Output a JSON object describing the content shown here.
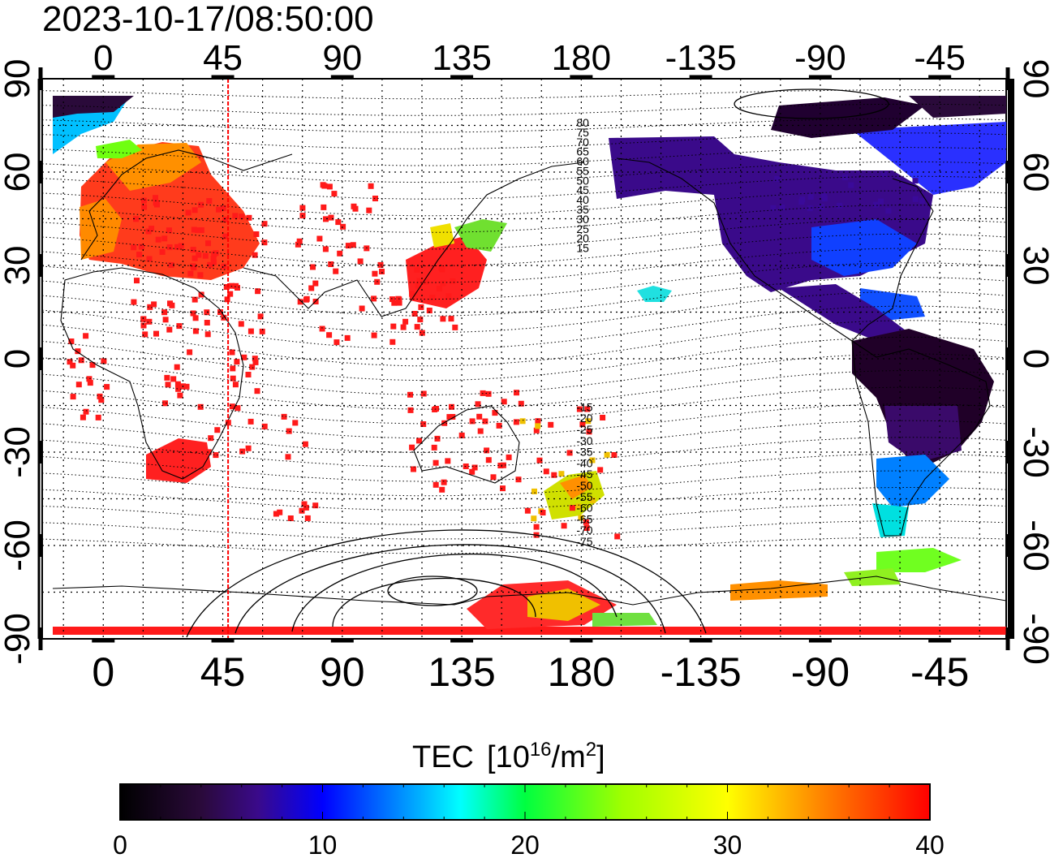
{
  "timestamp": "2023-10-17/08:50:00",
  "axes": {
    "x_ticks": [
      "0",
      "45",
      "90",
      "135",
      "180",
      "-135",
      "-90",
      "-45"
    ],
    "y_ticks": [
      "90",
      "60",
      "30",
      "0",
      "-30",
      "-60",
      "-90"
    ]
  },
  "contour_labels": [
    "80",
    "75",
    "70",
    "65",
    "60",
    "55",
    "50",
    "45",
    "40",
    "35",
    "30",
    "25",
    "20",
    "15",
    "-15",
    "-20",
    "-25",
    "-30",
    "-35",
    "-40",
    "-45",
    "-50",
    "-55",
    "-60",
    "-65",
    "-70",
    "-75"
  ],
  "colorbar": {
    "title": "TEC",
    "unit_prefix": "[10",
    "unit_sup1": "16",
    "unit_mid": "/m",
    "unit_sup2": "2",
    "unit_suffix": "]",
    "ticks": [
      "0",
      "10",
      "20",
      "30",
      "40"
    ],
    "min": 0,
    "max": 40
  },
  "map": {
    "lon_range": [
      -23,
      340
    ],
    "lat_range": [
      -90,
      90
    ],
    "marker_longitude": 47,
    "colors": {
      "marker_line": "#ff0000",
      "high_tec": "#ff1a1a",
      "low_tec": "#2a0a3a"
    }
  }
}
